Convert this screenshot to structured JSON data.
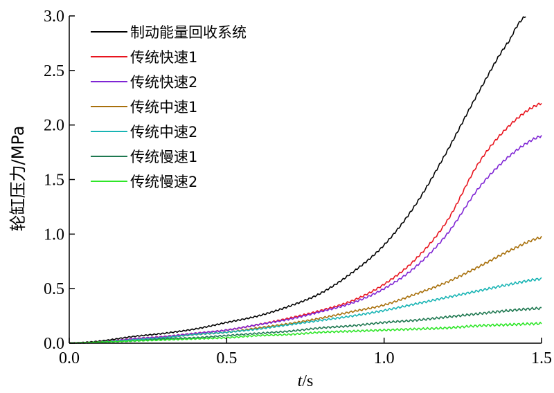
{
  "chart_data": {
    "type": "line",
    "title": "",
    "xlabel_italic": "t",
    "xlabel_unit": "/s",
    "ylabel": "轮缸压力/MPa",
    "xlim": [
      0.0,
      1.5
    ],
    "ylim": [
      0.0,
      3.0
    ],
    "xticks": [
      "0.0",
      "0.5",
      "1.0",
      "1.5"
    ],
    "yticks": [
      "0.0",
      "0.5",
      "1.0",
      "1.5",
      "2.0",
      "2.5",
      "3.0"
    ],
    "grid": false,
    "legend_position": "top-left",
    "series": [
      {
        "name": "制动能量回收系统",
        "color": "#000000",
        "x": [
          0,
          0.1,
          0.2,
          0.3,
          0.4,
          0.5,
          0.6,
          0.7,
          0.8,
          0.9,
          1.0,
          1.1,
          1.2,
          1.3,
          1.4,
          1.45
        ],
        "y": [
          0,
          0.02,
          0.06,
          0.09,
          0.13,
          0.19,
          0.25,
          0.34,
          0.46,
          0.65,
          0.9,
          1.27,
          1.76,
          2.3,
          2.78,
          3.0
        ]
      },
      {
        "name": "传统快速1",
        "color": "#e8141e",
        "x": [
          0,
          0.1,
          0.2,
          0.3,
          0.4,
          0.5,
          0.6,
          0.7,
          0.8,
          0.9,
          1.0,
          1.1,
          1.2,
          1.3,
          1.4,
          1.5
        ],
        "y": [
          0,
          0.01,
          0.04,
          0.06,
          0.09,
          0.12,
          0.17,
          0.23,
          0.3,
          0.39,
          0.54,
          0.77,
          1.12,
          1.65,
          2.0,
          2.2
        ]
      },
      {
        "name": "传统快速2",
        "color": "#7f25d4",
        "x": [
          0,
          0.1,
          0.2,
          0.3,
          0.4,
          0.5,
          0.6,
          0.7,
          0.8,
          0.9,
          1.0,
          1.1,
          1.2,
          1.3,
          1.4,
          1.5
        ],
        "y": [
          0,
          0.01,
          0.04,
          0.06,
          0.09,
          0.12,
          0.17,
          0.22,
          0.29,
          0.37,
          0.5,
          0.7,
          1.0,
          1.42,
          1.72,
          1.9
        ]
      },
      {
        "name": "传统中速1",
        "color": "#a8700c",
        "x": [
          0,
          0.1,
          0.2,
          0.3,
          0.4,
          0.5,
          0.6,
          0.7,
          0.8,
          0.9,
          1.0,
          1.1,
          1.2,
          1.3,
          1.4,
          1.5
        ],
        "y": [
          0,
          0.01,
          0.03,
          0.05,
          0.08,
          0.1,
          0.14,
          0.18,
          0.23,
          0.29,
          0.35,
          0.45,
          0.56,
          0.7,
          0.85,
          0.97
        ]
      },
      {
        "name": "传统中速2",
        "color": "#18b4b4",
        "x": [
          0,
          0.1,
          0.2,
          0.3,
          0.4,
          0.5,
          0.6,
          0.7,
          0.8,
          0.9,
          1.0,
          1.1,
          1.2,
          1.3,
          1.4,
          1.5
        ],
        "y": [
          0,
          0.01,
          0.03,
          0.05,
          0.08,
          0.1,
          0.13,
          0.17,
          0.21,
          0.25,
          0.3,
          0.36,
          0.42,
          0.48,
          0.54,
          0.59
        ]
      },
      {
        "name": "传统慢速1",
        "color": "#1e7850",
        "x": [
          0,
          0.1,
          0.2,
          0.3,
          0.4,
          0.5,
          0.6,
          0.7,
          0.8,
          0.9,
          1.0,
          1.1,
          1.2,
          1.3,
          1.4,
          1.5
        ],
        "y": [
          0,
          0.01,
          0.02,
          0.04,
          0.05,
          0.07,
          0.09,
          0.11,
          0.14,
          0.16,
          0.19,
          0.21,
          0.24,
          0.27,
          0.3,
          0.32
        ]
      },
      {
        "name": "传统慢速2",
        "color": "#2ee628",
        "x": [
          0,
          0.1,
          0.2,
          0.3,
          0.4,
          0.5,
          0.6,
          0.7,
          0.8,
          0.9,
          1.0,
          1.1,
          1.2,
          1.3,
          1.4,
          1.5
        ],
        "y": [
          0,
          0.01,
          0.02,
          0.03,
          0.04,
          0.05,
          0.07,
          0.08,
          0.1,
          0.11,
          0.12,
          0.13,
          0.14,
          0.16,
          0.17,
          0.18
        ]
      }
    ]
  }
}
